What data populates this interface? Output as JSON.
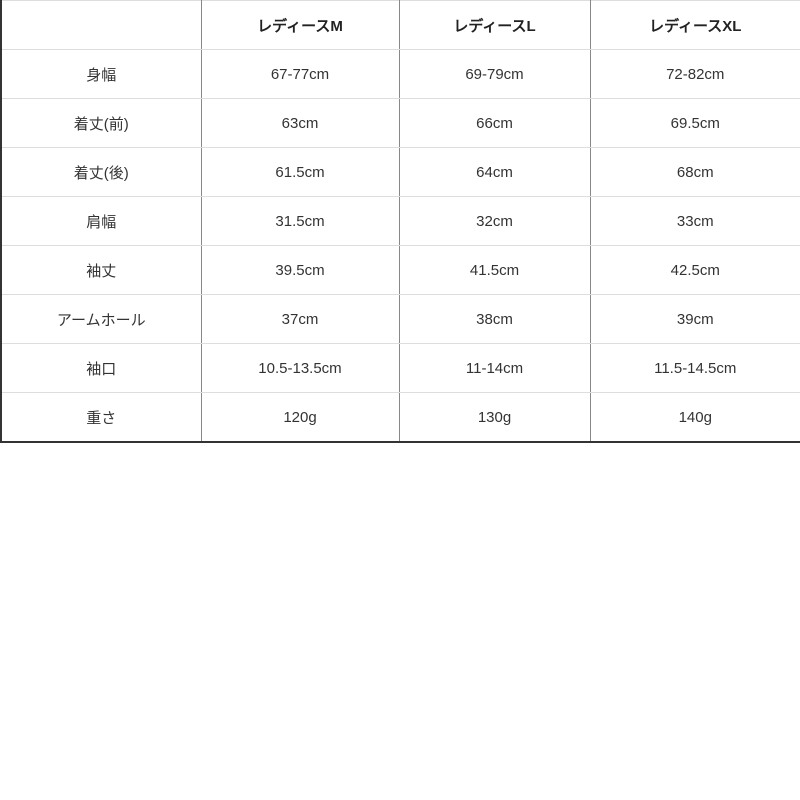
{
  "table": {
    "headers": [
      "",
      "レディースM",
      "レディースL",
      "レディースXL"
    ],
    "rows": [
      [
        "身幅",
        "67-77cm",
        "69-79cm",
        "72-82cm"
      ],
      [
        "着丈(前)",
        "63cm",
        "66cm",
        "69.5cm"
      ],
      [
        "着丈(後)",
        "61.5cm",
        "64cm",
        "68cm"
      ],
      [
        "肩幅",
        "31.5cm",
        "32cm",
        "33cm"
      ],
      [
        "袖丈",
        "39.5cm",
        "41.5cm",
        "42.5cm"
      ],
      [
        "アームホール",
        "37cm",
        "38cm",
        "39cm"
      ],
      [
        "袖口",
        "10.5-13.5cm",
        "11-14cm",
        "11.5-14.5cm"
      ],
      [
        "重さ",
        "120g",
        "130g",
        "140g"
      ]
    ]
  }
}
